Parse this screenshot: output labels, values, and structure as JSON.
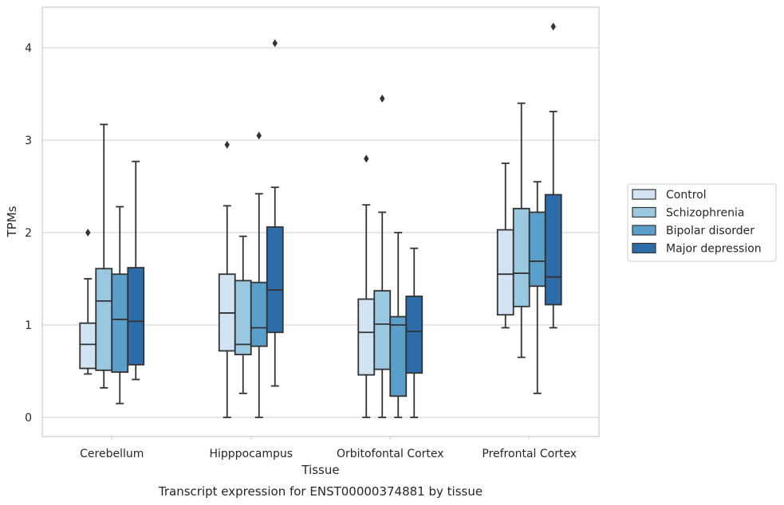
{
  "chart_data": {
    "type": "boxplot",
    "caption": "Transcript expression for ENST00000374881 by tissue",
    "xlabel": "Tissue",
    "ylabel": "TPMs",
    "ylim": [
      -0.2,
      4.45
    ],
    "yticks": [
      0,
      1,
      2,
      3,
      4
    ],
    "grid": true,
    "legend_position": "right",
    "categories": [
      "Cerebellum",
      "Hipppocampus",
      "Orbitofontal Cortex",
      "Prefrontal Cortex"
    ],
    "series": [
      {
        "name": "Control",
        "color": "#d2e3f3",
        "boxes": [
          {
            "whisker_low": 0.47,
            "q1": 0.53,
            "median": 0.79,
            "q3": 1.02,
            "whisker_high": 1.5,
            "outliers": [
              2.0
            ]
          },
          {
            "whisker_low": 0.0,
            "q1": 0.72,
            "median": 1.13,
            "q3": 1.55,
            "whisker_high": 2.29,
            "outliers": [
              2.95
            ]
          },
          {
            "whisker_low": 0.0,
            "q1": 0.46,
            "median": 0.92,
            "q3": 1.28,
            "whisker_high": 2.3,
            "outliers": [
              2.8
            ]
          },
          {
            "whisker_low": 0.97,
            "q1": 1.11,
            "median": 1.55,
            "q3": 2.03,
            "whisker_high": 2.75,
            "outliers": []
          }
        ]
      },
      {
        "name": "Schizophrenia",
        "color": "#9ac8e0",
        "boxes": [
          {
            "whisker_low": 0.32,
            "q1": 0.51,
            "median": 1.26,
            "q3": 1.61,
            "whisker_high": 3.17,
            "outliers": []
          },
          {
            "whisker_low": 0.26,
            "q1": 0.68,
            "median": 0.79,
            "q3": 1.48,
            "whisker_high": 1.96,
            "outliers": []
          },
          {
            "whisker_low": 0.0,
            "q1": 0.52,
            "median": 1.01,
            "q3": 1.37,
            "whisker_high": 2.22,
            "outliers": [
              3.45
            ]
          },
          {
            "whisker_low": 0.65,
            "q1": 1.2,
            "median": 1.56,
            "q3": 2.26,
            "whisker_high": 3.4,
            "outliers": []
          }
        ]
      },
      {
        "name": "Bipolar disorder",
        "color": "#5a9fc9",
        "boxes": [
          {
            "whisker_low": 0.15,
            "q1": 0.49,
            "median": 1.06,
            "q3": 1.55,
            "whisker_high": 2.28,
            "outliers": []
          },
          {
            "whisker_low": 0.0,
            "q1": 0.77,
            "median": 0.97,
            "q3": 1.46,
            "whisker_high": 2.42,
            "outliers": [
              3.05
            ]
          },
          {
            "whisker_low": 0.0,
            "q1": 0.23,
            "median": 1.0,
            "q3": 1.09,
            "whisker_high": 2.0,
            "outliers": []
          },
          {
            "whisker_low": 0.26,
            "q1": 1.42,
            "median": 1.69,
            "q3": 2.22,
            "whisker_high": 2.55,
            "outliers": []
          }
        ]
      },
      {
        "name": "Major depression",
        "color": "#2b6ca9",
        "boxes": [
          {
            "whisker_low": 0.41,
            "q1": 0.57,
            "median": 1.04,
            "q3": 1.62,
            "whisker_high": 2.77,
            "outliers": []
          },
          {
            "whisker_low": 0.34,
            "q1": 0.92,
            "median": 1.38,
            "q3": 2.06,
            "whisker_high": 2.49,
            "outliers": [
              4.05
            ]
          },
          {
            "whisker_low": 0.0,
            "q1": 0.48,
            "median": 0.93,
            "q3": 1.31,
            "whisker_high": 1.83,
            "outliers": []
          },
          {
            "whisker_low": 0.97,
            "q1": 1.22,
            "median": 1.52,
            "q3": 2.41,
            "whisker_high": 3.31,
            "outliers": [
              4.23
            ]
          }
        ]
      }
    ]
  }
}
